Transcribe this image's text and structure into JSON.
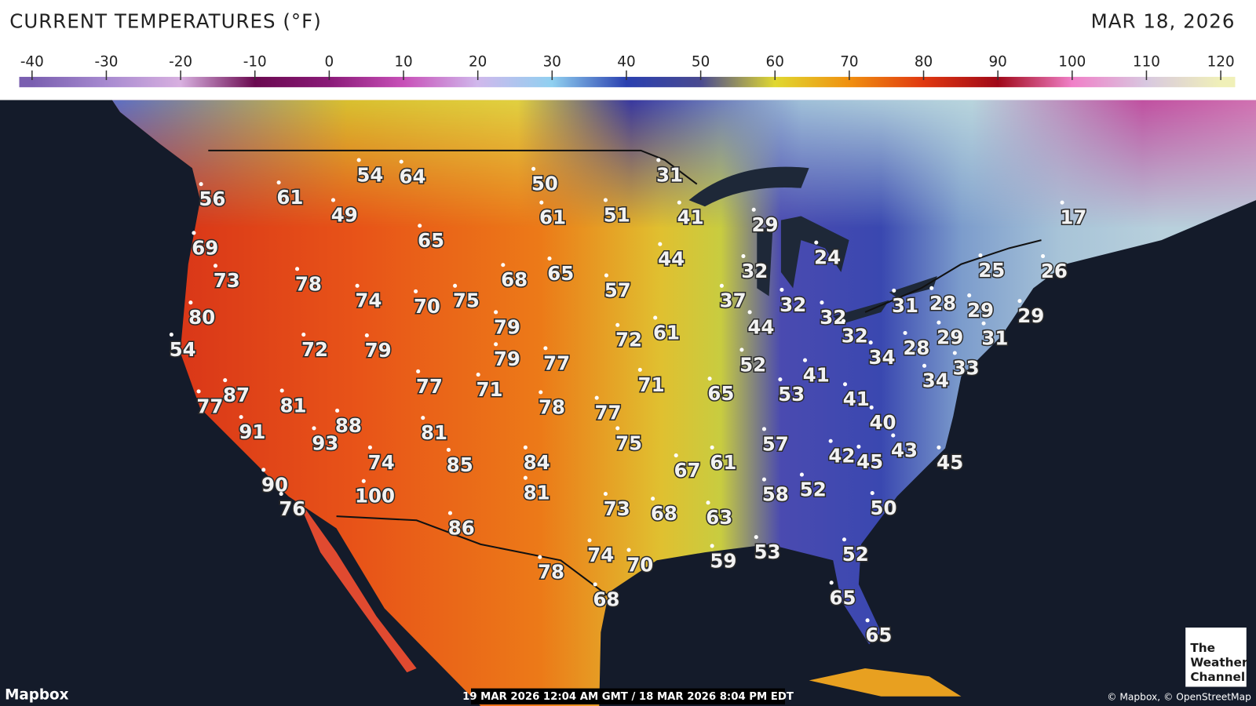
{
  "header": {
    "title": "CURRENT TEMPERATURES (°F)",
    "date": "MAR 18, 2026"
  },
  "colorbar": {
    "ticks": [
      -40,
      -30,
      -20,
      -10,
      0,
      10,
      20,
      30,
      40,
      50,
      60,
      70,
      80,
      90,
      100,
      110,
      120
    ],
    "colors": [
      "#7a5fb0",
      "#a78ad0",
      "#d8b0e0",
      "#6a0a50",
      "#8a1a78",
      "#c850b8",
      "#d0b8ec",
      "#90d0f0",
      "#2a40b0",
      "#4a4a90",
      "#e0d830",
      "#f09010",
      "#e03810",
      "#a00818",
      "#f080c8",
      "#d8c8e0",
      "#f0f0b8"
    ]
  },
  "temperatures": [
    56,
    61,
    54,
    64,
    50,
    31,
    49,
    61,
    51,
    41,
    29,
    17,
    69,
    65,
    44,
    24,
    73,
    78,
    68,
    65,
    32,
    25,
    26,
    74,
    70,
    75,
    57,
    37,
    32,
    31,
    28,
    29,
    29,
    80,
    79,
    72,
    61,
    44,
    32,
    32,
    29,
    31,
    54,
    72,
    79,
    79,
    77,
    34,
    28,
    52,
    33,
    41,
    34,
    77,
    87,
    81,
    77,
    71,
    71,
    65,
    53,
    41,
    78,
    77,
    40,
    91,
    88,
    93,
    81,
    75,
    57,
    42,
    45,
    43,
    45,
    74,
    85,
    84,
    67,
    61,
    90,
    100,
    81,
    58,
    52,
    76,
    73,
    68,
    63,
    50,
    86,
    74,
    70,
    59,
    53,
    52,
    78,
    68,
    65,
    65
  ],
  "footer": {
    "brand": "Mapbox",
    "timestamp": "19 MAR 2026 12:04 AM GMT / 18 MAR 2026 8:04 PM EDT",
    "attribution": "© Mapbox, © OpenStreetMap",
    "logo": [
      "The",
      "Weather",
      "Channel"
    ]
  }
}
